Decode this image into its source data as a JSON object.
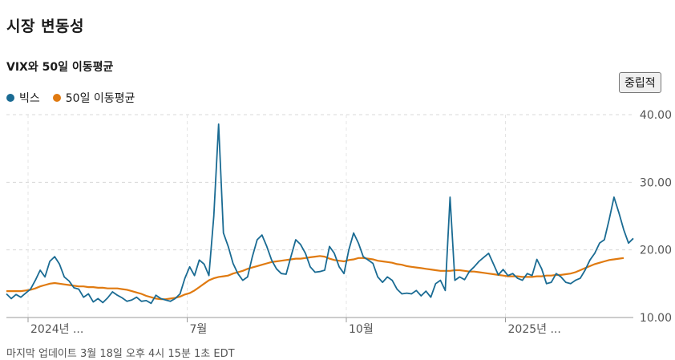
{
  "header": {
    "title": "시장 변동성",
    "subtitle": "VIX와 50일 이동평균",
    "sentiment_button": "중립적"
  },
  "footer": {
    "updated": "마지막 업데이트 3월 18일 오후 4시 15분 1초 EDT"
  },
  "chart_data": {
    "type": "line",
    "ylim": [
      10,
      40
    ],
    "y_ticks": [
      "10.00",
      "20.00",
      "30.00",
      "40.00"
    ],
    "x_ticks": [
      "2024년 ...",
      "7월",
      "10월",
      "2025년 ..."
    ],
    "grid": true,
    "legend_position": "top-left",
    "series": [
      {
        "name": "빅스",
        "color": "#1a6b93",
        "values": [
          13.5,
          12.8,
          13.4,
          13.0,
          13.6,
          14.2,
          15.5,
          17.0,
          16.0,
          18.3,
          19.0,
          17.9,
          16.0,
          15.4,
          14.4,
          14.2,
          13.0,
          13.5,
          12.3,
          12.8,
          12.2,
          12.9,
          13.8,
          13.3,
          12.9,
          12.4,
          12.6,
          13.0,
          12.4,
          12.5,
          12.1,
          13.3,
          12.8,
          12.6,
          12.4,
          12.8,
          13.5,
          15.8,
          17.5,
          16.2,
          18.5,
          17.9,
          16.2,
          25.0,
          38.6,
          22.5,
          20.5,
          18.0,
          16.5,
          15.5,
          16.0,
          19.0,
          21.5,
          22.2,
          20.5,
          18.5,
          17.2,
          16.5,
          16.4,
          19.0,
          21.5,
          20.8,
          19.5,
          17.5,
          16.7,
          16.8,
          17.0,
          20.5,
          19.5,
          17.5,
          16.5,
          20.0,
          22.5,
          21.0,
          19.0,
          18.5,
          18.0,
          16.0,
          15.2,
          16.0,
          15.5,
          14.2,
          13.5,
          13.6,
          13.5,
          14.0,
          13.2,
          13.9,
          13.0,
          15.0,
          15.5,
          14.0,
          27.8,
          15.5,
          16.0,
          15.6,
          16.8,
          17.5,
          18.3,
          18.9,
          19.5,
          17.9,
          16.3,
          17.1,
          16.2,
          16.5,
          15.8,
          15.5,
          16.5,
          16.2,
          18.6,
          17.2,
          15.0,
          15.2,
          16.5,
          16.0,
          15.2,
          15.0,
          15.5,
          15.8,
          17.0,
          18.5,
          19.5,
          21.0,
          21.5,
          24.5,
          27.8,
          25.5,
          23.0,
          21.0,
          21.7
        ],
        "ma_values": [
          13.9,
          13.9,
          13.9,
          13.9,
          14.0,
          14.1,
          14.3,
          14.6,
          14.8,
          15.0,
          15.1,
          15.0,
          14.9,
          14.8,
          14.7,
          14.6,
          14.6,
          14.5,
          14.5,
          14.4,
          14.4,
          14.3,
          14.3,
          14.3,
          14.2,
          14.1,
          13.9,
          13.7,
          13.5,
          13.2,
          13.0,
          12.8,
          12.7,
          12.7,
          12.8,
          12.9,
          13.1,
          13.4,
          13.6,
          14.0,
          14.5,
          15.0,
          15.5,
          15.8,
          16.0,
          16.1,
          16.2,
          16.5,
          16.7,
          16.9,
          17.2,
          17.4,
          17.6,
          17.8,
          18.0,
          18.2,
          18.3,
          18.4,
          18.5,
          18.6,
          18.7,
          18.7,
          18.8,
          18.9,
          19.0,
          19.1,
          19.0,
          18.7,
          18.5,
          18.4,
          18.3,
          18.5,
          18.6,
          18.8,
          18.8,
          18.7,
          18.6,
          18.4,
          18.3,
          18.2,
          18.1,
          17.9,
          17.8,
          17.6,
          17.5,
          17.4,
          17.3,
          17.2,
          17.1,
          17.0,
          16.9,
          16.9,
          16.9,
          17.0,
          17.0,
          16.9,
          16.8,
          16.8,
          16.7,
          16.6,
          16.5,
          16.4,
          16.3,
          16.2,
          16.1,
          16.1,
          16.1,
          16.0,
          16.0,
          16.0,
          16.1,
          16.1,
          16.2,
          16.2,
          16.3,
          16.3,
          16.4,
          16.5,
          16.7,
          17.0,
          17.3,
          17.6,
          17.9,
          18.1,
          18.3,
          18.5,
          18.6,
          18.7,
          18.8
        ]
      },
      {
        "name": "50일 이동평균",
        "color": "#e07a10"
      }
    ]
  }
}
